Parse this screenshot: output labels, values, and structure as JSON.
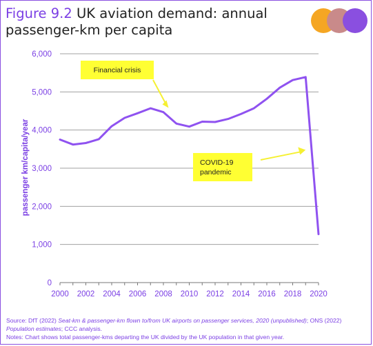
{
  "title": {
    "figure_label": "Figure 9.2",
    "text": " UK aviation demand: annual passenger-km per capita"
  },
  "colors": {
    "accent": "#7b3fe4",
    "line": "#8f52f0",
    "gridline": "#a0a0a0",
    "annotation_bg": "#ffff33",
    "arrow": "#f5f032",
    "logo": [
      "#f5a623",
      "#c98a8a",
      "#8a4fe0"
    ]
  },
  "chart_data": {
    "type": "line",
    "title": "UK aviation demand: annual passenger-km per capita",
    "ylabel": "passenger km/capita/year",
    "xlabel": "",
    "xlim": [
      2000,
      2020
    ],
    "ylim": [
      0,
      6000
    ],
    "x_ticks": [
      "2000",
      "2002",
      "2004",
      "2006",
      "2008",
      "2010",
      "2012",
      "2014",
      "2016",
      "2018",
      "2020"
    ],
    "y_ticks": [
      "0",
      "1,000",
      "2,000",
      "3,000",
      "4,000",
      "5,000",
      "6,000"
    ],
    "grid": "horizontal",
    "series": [
      {
        "x": [
          2000,
          2001,
          2002,
          2003,
          2004,
          2005,
          2006,
          2007,
          2008,
          2009,
          2010,
          2011,
          2012,
          2013,
          2014,
          2015,
          2016,
          2017,
          2018,
          2019,
          2020
        ],
        "values": [
          3750,
          3620,
          3660,
          3760,
          4100,
          4320,
          4440,
          4570,
          4470,
          4170,
          4090,
          4220,
          4210,
          4290,
          4420,
          4570,
          4820,
          5110,
          5310,
          5390,
          1270
        ]
      }
    ],
    "annotations": [
      {
        "text": "Financial crisis",
        "x": 2008.4,
        "y": 4600
      },
      {
        "text": "COVID-19 pandemic",
        "x": 2019.0,
        "y": 3480
      }
    ]
  },
  "footer": {
    "source_prefix": "Source: DfT (2022) ",
    "source_italic_1": "Seat-km & passenger-km flown to/from UK airports on passenger services, 2020 (unpublished)",
    "source_mid": "; ONS (2022) ",
    "source_italic_2": "Population estimates",
    "source_suffix": "; CCC analysis.",
    "notes": "Notes: Chart shows total passenger-kms departing the UK divided by the UK population in that given year."
  }
}
